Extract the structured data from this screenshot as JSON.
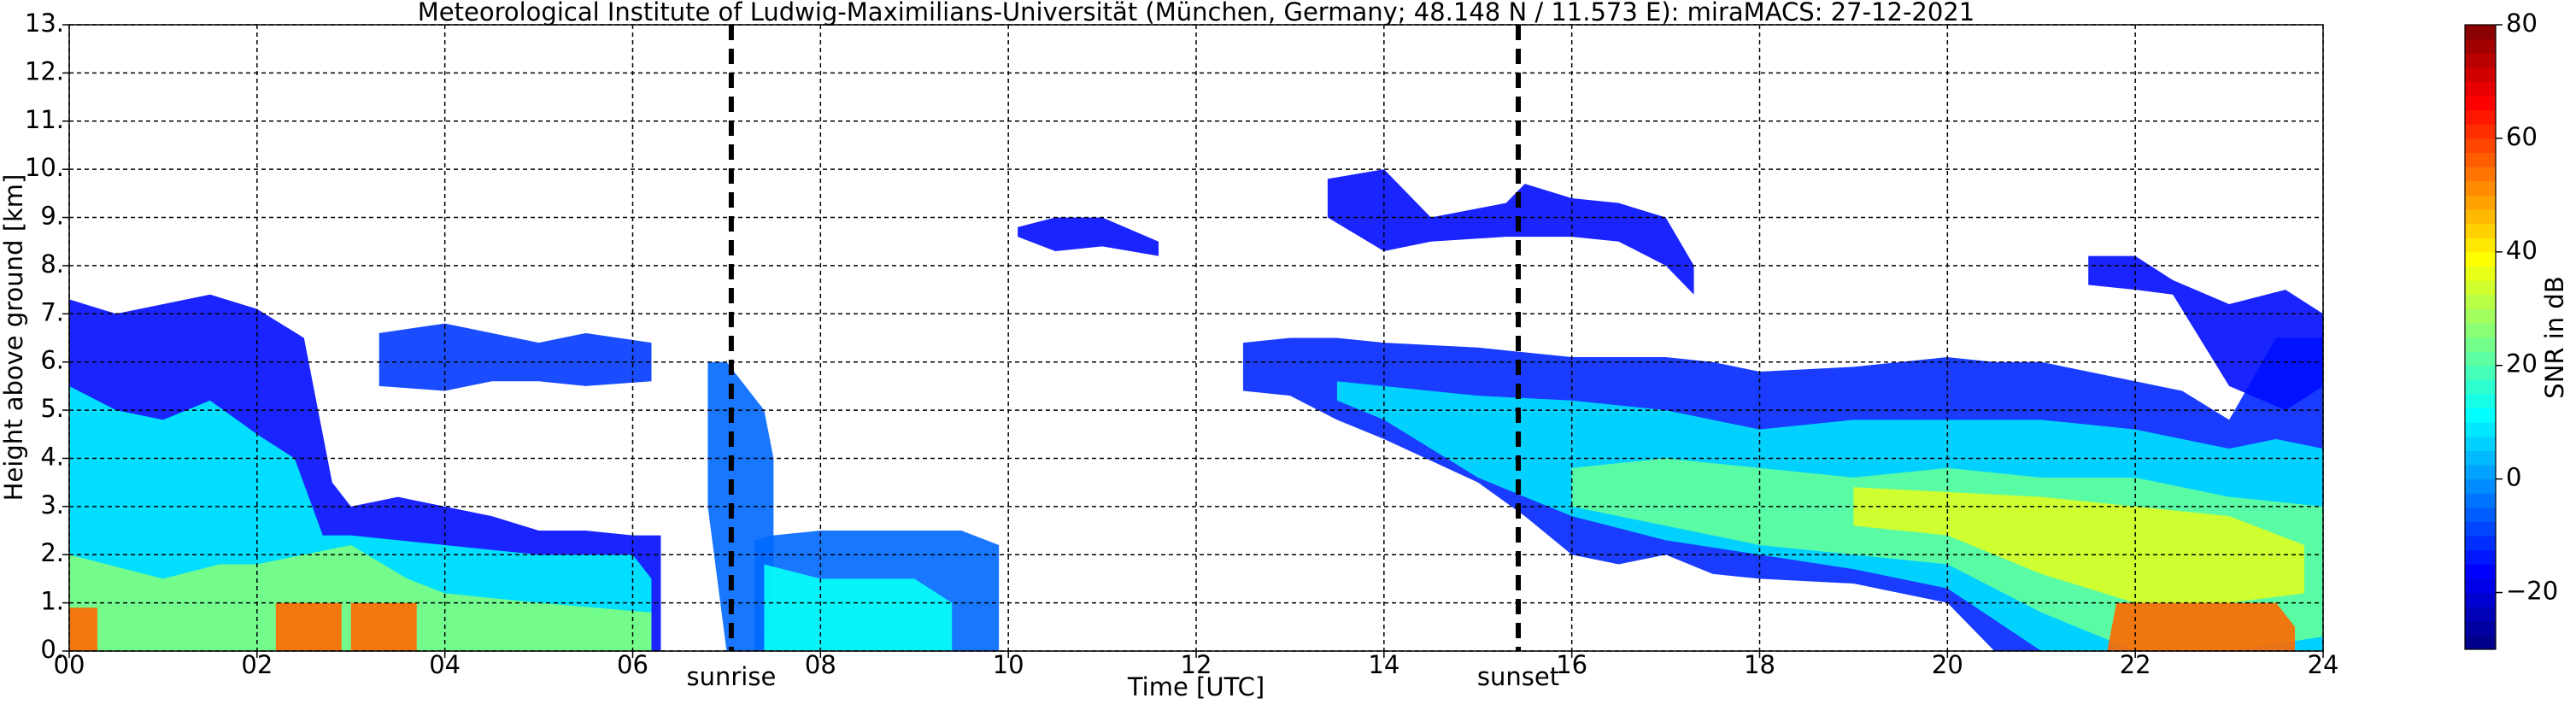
{
  "chart_data": {
    "type": "time-height",
    "title": "Meteorological Institute of Ludwig-Maximilians-Universität (München, Germany; 48.148 N / 11.573 E):    miraMACS: 27-12-2021",
    "xlabel": "Time [UTC]",
    "ylabel": "Height above ground [km]",
    "colorbar_label": "SNR in dB",
    "xlim": [
      0,
      24
    ],
    "xticks": [
      {
        "value": 0,
        "label": "00"
      },
      {
        "value": 2,
        "label": "02"
      },
      {
        "value": 4,
        "label": "04"
      },
      {
        "value": 6,
        "label": "06"
      },
      {
        "value": 8,
        "label": "08"
      },
      10,
      12,
      14,
      16,
      18,
      20,
      22,
      24
    ],
    "ylim": [
      0,
      13
    ],
    "yticks": [
      {
        "value": 0,
        "label": "0."
      },
      {
        "value": 1,
        "label": "1."
      },
      {
        "value": 2,
        "label": "2."
      },
      {
        "value": 3,
        "label": "3."
      },
      {
        "value": 4,
        "label": "4."
      },
      {
        "value": 5,
        "label": "5."
      },
      {
        "value": 6,
        "label": "6."
      },
      {
        "value": 7,
        "label": "7."
      },
      {
        "value": 8,
        "label": "8."
      },
      {
        "value": 9,
        "label": "9."
      },
      {
        "value": 10,
        "label": "10."
      },
      {
        "value": 11,
        "label": "11."
      },
      {
        "value": 12,
        "label": "12."
      },
      {
        "value": 13,
        "label": "13."
      }
    ],
    "clim": [
      -30,
      80
    ],
    "cticks": [
      {
        "value": -20,
        "label": "−20"
      },
      0,
      20,
      40,
      60,
      80
    ],
    "grid": true,
    "colormap": "jet",
    "markers": [
      {
        "label": "sunrise",
        "time": 7.05
      },
      {
        "label": "sunset",
        "time": 15.43
      }
    ],
    "echo": [
      {
        "snr": -15,
        "t": [
          0,
          0.5,
          1,
          1.5,
          2,
          2.5,
          2.8,
          3,
          3.5,
          4,
          4.5,
          5,
          5.5,
          6,
          6.3
        ],
        "top": [
          7.3,
          7.0,
          7.2,
          7.4,
          7.1,
          6.5,
          3.5,
          3.0,
          3.2,
          3.0,
          2.8,
          2.5,
          2.5,
          2.4,
          2.4
        ],
        "base": [
          0,
          0,
          0,
          0,
          0,
          0,
          0,
          0,
          0,
          0,
          0,
          0,
          0,
          0,
          0
        ]
      },
      {
        "snr": -10,
        "t": [
          3.3,
          4,
          4.5,
          5,
          5.5,
          6.2
        ],
        "top": [
          6.6,
          6.8,
          6.6,
          6.4,
          6.6,
          6.4
        ],
        "base": [
          5.5,
          5.4,
          5.6,
          5.6,
          5.5,
          5.6
        ]
      },
      {
        "snr": 10,
        "t": [
          0,
          0.5,
          1,
          1.5,
          2,
          2.4,
          2.7,
          3,
          4,
          5,
          6,
          6.2
        ],
        "top": [
          5.5,
          5,
          4.8,
          5.2,
          4.5,
          4,
          2.4,
          2.4,
          2.2,
          2.0,
          2.0,
          1.5
        ],
        "base": [
          0,
          0,
          0,
          0,
          0,
          0,
          0,
          0,
          0,
          0,
          0,
          0
        ]
      },
      {
        "snr": 25,
        "t": [
          0,
          1,
          1.6,
          2,
          3,
          3.6,
          4,
          5,
          6.2
        ],
        "top": [
          2,
          1.5,
          1.8,
          1.8,
          2.2,
          1.5,
          1.2,
          1,
          0.8
        ],
        "base": [
          0,
          0,
          0,
          0,
          0,
          0,
          0,
          0,
          0
        ]
      },
      {
        "snr": 55,
        "t": [
          0,
          0.3,
          0.35,
          2.2,
          2.9,
          2.95,
          3.0,
          3.7
        ],
        "top": [
          0.9,
          0.9,
          null,
          1,
          1,
          null,
          1,
          1
        ],
        "base": [
          0,
          0,
          null,
          0,
          0,
          null,
          0,
          0
        ]
      },
      {
        "snr": -5,
        "t": [
          6.8,
          7.0,
          7.2,
          7.4,
          7.5
        ],
        "top": [
          6,
          6,
          5.5,
          5,
          4
        ],
        "base": [
          3,
          0,
          0,
          0,
          1.5
        ]
      },
      {
        "snr": -5,
        "t": [
          7.3,
          7.5,
          8,
          8.5,
          9,
          9.5,
          9.9
        ],
        "top": [
          2.3,
          2.4,
          2.5,
          2.5,
          2.5,
          2.5,
          2.2
        ],
        "base": [
          0,
          0,
          0,
          0,
          0,
          0,
          0
        ]
      },
      {
        "snr": 12,
        "t": [
          7.4,
          8,
          8.5,
          9,
          9.4
        ],
        "top": [
          1.8,
          1.5,
          1.5,
          1.5,
          1.0
        ],
        "base": [
          0,
          0,
          0,
          0,
          0
        ]
      },
      {
        "snr": -15,
        "t": [
          10.1,
          10.5,
          11,
          11.6
        ],
        "top": [
          8.8,
          9.0,
          9.0,
          8.5
        ],
        "base": [
          8.6,
          8.3,
          8.4,
          8.2
        ]
      },
      {
        "snr": -12,
        "t": [
          12.5,
          13,
          13.5,
          14,
          15,
          15.5,
          16,
          16.5,
          17,
          17.5,
          18,
          19,
          20,
          20.5,
          21,
          22,
          22.5,
          23,
          23.5,
          24
        ],
        "top": [
          6.4,
          6.5,
          6.5,
          6.4,
          6.3,
          6.2,
          6.1,
          6.1,
          6.1,
          6.0,
          5.8,
          5.9,
          6.1,
          6.0,
          6.0,
          5.6,
          5.4,
          4.8,
          6.5,
          6.5
        ],
        "base": [
          5.4,
          5.3,
          4.8,
          4.4,
          3.5,
          2.8,
          2.0,
          1.8,
          2.0,
          1.6,
          1.5,
          1.4,
          1.0,
          0,
          0,
          0,
          0,
          0,
          0,
          0
        ]
      },
      {
        "snr": -15,
        "t": [
          13.4,
          14,
          14.5,
          15.3,
          15.5,
          16,
          16.5,
          17,
          17.3
        ],
        "top": [
          9.8,
          10,
          9.0,
          9.3,
          9.7,
          9.4,
          9.3,
          9.0,
          8.0
        ],
        "base": [
          9.0,
          8.3,
          8.5,
          8.6,
          8.6,
          8.6,
          8.5,
          8.0,
          7.4
        ]
      },
      {
        "snr": -15,
        "t": [
          21.5,
          22,
          22.4,
          23,
          23.6,
          24
        ],
        "top": [
          8.2,
          8.2,
          7.7,
          7.2,
          7.5,
          7.0
        ],
        "base": [
          7.6,
          7.5,
          7.4,
          5.5,
          5.0,
          5.5
        ]
      },
      {
        "snr": 8,
        "t": [
          13.5,
          14,
          15,
          16,
          17,
          18,
          19,
          20,
          21,
          22,
          23,
          23.5,
          24
        ],
        "top": [
          5.6,
          5.5,
          5.3,
          5.2,
          5.0,
          4.6,
          4.8,
          4.8,
          4.8,
          4.6,
          4.2,
          4.4,
          4.2
        ],
        "base": [
          5.2,
          4.8,
          3.6,
          2.8,
          2.3,
          2.0,
          1.7,
          1.3,
          0,
          0,
          0,
          0,
          0
        ]
      },
      {
        "snr": 22,
        "t": [
          16,
          17,
          18,
          19,
          20,
          21,
          22,
          23,
          24
        ],
        "top": [
          3.8,
          4.0,
          3.8,
          3.6,
          3.8,
          3.6,
          3.6,
          3.2,
          3.0
        ],
        "base": [
          3.0,
          2.6,
          2.2,
          2.0,
          1.8,
          0.8,
          0,
          0,
          0.3
        ]
      },
      {
        "snr": 35,
        "t": [
          19,
          20,
          21,
          22,
          23,
          23.8
        ],
        "top": [
          3.4,
          3.3,
          3.2,
          3.0,
          2.8,
          2.2
        ],
        "base": [
          2.6,
          2.4,
          1.6,
          1.0,
          1.0,
          1.2
        ]
      },
      {
        "snr": 55,
        "t": [
          21.7,
          21.8,
          22,
          23.5,
          23.7
        ],
        "top": [
          0,
          1,
          1,
          1,
          0.5
        ],
        "base": [
          0,
          0,
          0,
          0,
          0
        ]
      }
    ]
  }
}
